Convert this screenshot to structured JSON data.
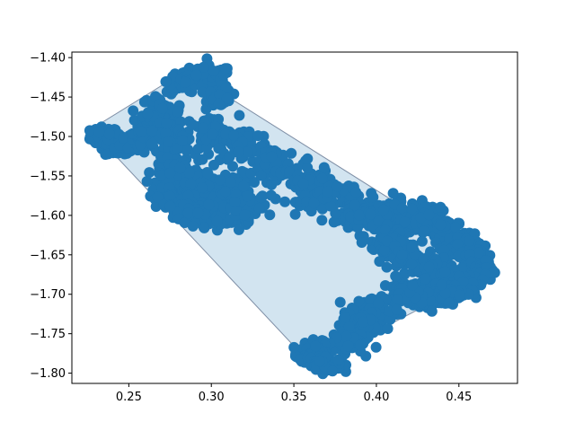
{
  "chart_data": {
    "type": "scatter",
    "title": "",
    "xlabel": "",
    "ylabel": "",
    "xlim": [
      0.2155,
      0.4855
    ],
    "ylim": [
      -1.813,
      -1.393
    ],
    "grid": false,
    "x_ticks": [
      0.25,
      0.3,
      0.35,
      0.4,
      0.45
    ],
    "x_tick_labels": [
      "0.25",
      "0.30",
      "0.35",
      "0.40",
      "0.45"
    ],
    "y_ticks": [
      -1.4,
      -1.45,
      -1.5,
      -1.55,
      -1.6,
      -1.65,
      -1.7,
      -1.75,
      -1.8
    ],
    "y_tick_labels": [
      "−1.40",
      "−1.45",
      "−1.50",
      "−1.55",
      "−1.60",
      "−1.65",
      "−1.70",
      "−1.75",
      "−1.80"
    ],
    "colors": {
      "points": "#1f77b4",
      "hull_fill": "#1f77b4",
      "hull_edge": "#7f8fa6"
    },
    "series": [
      {
        "kind": "convex-hull",
        "x": [
          0.227,
          0.288,
          0.308,
          0.472,
          0.472,
          0.361,
          0.227
        ],
        "y": [
          -1.491,
          -1.412,
          -1.447,
          -1.663,
          -1.668,
          -1.79,
          -1.491
        ]
      },
      {
        "kind": "point-cloud",
        "centers": [
          [
            0.235,
            -1.5
          ],
          [
            0.245,
            -1.512
          ],
          [
            0.255,
            -1.505
          ],
          [
            0.262,
            -1.49
          ],
          [
            0.27,
            -1.47
          ],
          [
            0.285,
            -1.43
          ],
          [
            0.3,
            -1.425
          ],
          [
            0.305,
            -1.45
          ],
          [
            0.278,
            -1.51
          ],
          [
            0.3,
            -1.5
          ],
          [
            0.32,
            -1.51
          ],
          [
            0.275,
            -1.56
          ],
          [
            0.29,
            -1.56
          ],
          [
            0.31,
            -1.57
          ],
          [
            0.28,
            -1.59
          ],
          [
            0.3,
            -1.6
          ],
          [
            0.32,
            -1.59
          ],
          [
            0.34,
            -1.54
          ],
          [
            0.36,
            -1.56
          ],
          [
            0.375,
            -1.58
          ],
          [
            0.39,
            -1.6
          ],
          [
            0.405,
            -1.6
          ],
          [
            0.42,
            -1.61
          ],
          [
            0.43,
            -1.6
          ],
          [
            0.44,
            -1.62
          ],
          [
            0.45,
            -1.64
          ],
          [
            0.46,
            -1.65
          ],
          [
            0.465,
            -1.67
          ],
          [
            0.41,
            -1.64
          ],
          [
            0.425,
            -1.66
          ],
          [
            0.44,
            -1.67
          ],
          [
            0.45,
            -1.69
          ],
          [
            0.44,
            -1.7
          ],
          [
            0.42,
            -1.7
          ],
          [
            0.4,
            -1.72
          ],
          [
            0.39,
            -1.74
          ],
          [
            0.38,
            -1.76
          ],
          [
            0.365,
            -1.77
          ],
          [
            0.36,
            -1.78
          ],
          [
            0.37,
            -1.79
          ]
        ],
        "spreads": [
          [
            0.007,
            0.01
          ],
          [
            0.008,
            0.012
          ],
          [
            0.008,
            0.012
          ],
          [
            0.008,
            0.015
          ],
          [
            0.01,
            0.018
          ],
          [
            0.01,
            0.012
          ],
          [
            0.01,
            0.012
          ],
          [
            0.006,
            0.01
          ],
          [
            0.01,
            0.02
          ],
          [
            0.014,
            0.022
          ],
          [
            0.012,
            0.02
          ],
          [
            0.008,
            0.022
          ],
          [
            0.012,
            0.022
          ],
          [
            0.012,
            0.02
          ],
          [
            0.01,
            0.015
          ],
          [
            0.012,
            0.012
          ],
          [
            0.012,
            0.015
          ],
          [
            0.012,
            0.022
          ],
          [
            0.012,
            0.022
          ],
          [
            0.012,
            0.02
          ],
          [
            0.01,
            0.018
          ],
          [
            0.01,
            0.016
          ],
          [
            0.01,
            0.016
          ],
          [
            0.008,
            0.012
          ],
          [
            0.008,
            0.014
          ],
          [
            0.008,
            0.014
          ],
          [
            0.007,
            0.014
          ],
          [
            0.005,
            0.01
          ],
          [
            0.012,
            0.018
          ],
          [
            0.012,
            0.018
          ],
          [
            0.012,
            0.016
          ],
          [
            0.01,
            0.014
          ],
          [
            0.01,
            0.012
          ],
          [
            0.01,
            0.012
          ],
          [
            0.01,
            0.014
          ],
          [
            0.01,
            0.014
          ],
          [
            0.01,
            0.012
          ],
          [
            0.008,
            0.01
          ],
          [
            0.008,
            0.01
          ],
          [
            0.008,
            0.008
          ]
        ]
      }
    ]
  }
}
